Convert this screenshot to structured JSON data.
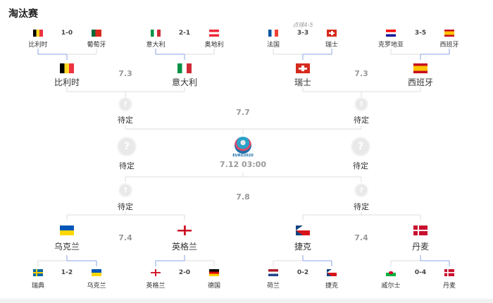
{
  "title": "淘汰赛",
  "colors": {
    "winner_line": "#8ea3e6",
    "loser_line": "#dddddd",
    "date": "#999999"
  },
  "round16_top": [
    {
      "home": {
        "name": "比利时",
        "flag": "belgium"
      },
      "away": {
        "name": "葡萄牙",
        "flag": "portugal"
      },
      "score": "1-0",
      "winner": "home"
    },
    {
      "home": {
        "name": "意大利",
        "flag": "italy"
      },
      "away": {
        "name": "奥地利",
        "flag": "austria"
      },
      "score": "2-1",
      "winner": "home"
    },
    {
      "home": {
        "name": "法国",
        "flag": "france"
      },
      "away": {
        "name": "瑞士",
        "flag": "switzerland"
      },
      "score": "3-3",
      "note": "点球4-5",
      "winner": "away"
    },
    {
      "home": {
        "name": "克罗地亚",
        "flag": "croatia"
      },
      "away": {
        "name": "西班牙",
        "flag": "spain"
      },
      "score": "3-5",
      "winner": "away"
    }
  ],
  "quarter_top": {
    "teams": [
      {
        "name": "比利时",
        "flag": "belgium"
      },
      {
        "name": "意大利",
        "flag": "italy"
      },
      {
        "name": "瑞士",
        "flag": "switzerland"
      },
      {
        "name": "西班牙",
        "flag": "spain"
      }
    ],
    "dates": [
      "7.3",
      "7.3"
    ]
  },
  "semi_top": {
    "teams": [
      "待定",
      "待定"
    ],
    "date": "7.7"
  },
  "final": {
    "teams": [
      "待定",
      "待定"
    ],
    "date": "7.12 03:00",
    "logo_text": "EURO2020"
  },
  "semi_bottom": {
    "teams": [
      "待定",
      "待定"
    ],
    "date": "7.8"
  },
  "quarter_bottom": {
    "teams": [
      {
        "name": "乌克兰",
        "flag": "ukraine"
      },
      {
        "name": "英格兰",
        "flag": "england"
      },
      {
        "name": "捷克",
        "flag": "czech"
      },
      {
        "name": "丹麦",
        "flag": "denmark"
      }
    ],
    "dates": [
      "7.4",
      "7.4"
    ]
  },
  "round16_bottom": [
    {
      "home": {
        "name": "瑞典",
        "flag": "sweden"
      },
      "away": {
        "name": "乌克兰",
        "flag": "ukraine"
      },
      "score": "1-2",
      "winner": "away"
    },
    {
      "home": {
        "name": "英格兰",
        "flag": "england"
      },
      "away": {
        "name": "德国",
        "flag": "germany"
      },
      "score": "2-0",
      "winner": "home"
    },
    {
      "home": {
        "name": "荷兰",
        "flag": "netherlands"
      },
      "away": {
        "name": "捷克",
        "flag": "czech"
      },
      "score": "0-2",
      "winner": "away"
    },
    {
      "home": {
        "name": "威尔士",
        "flag": "wales"
      },
      "away": {
        "name": "丹麦",
        "flag": "denmark"
      },
      "score": "0-4",
      "winner": "away"
    }
  ]
}
